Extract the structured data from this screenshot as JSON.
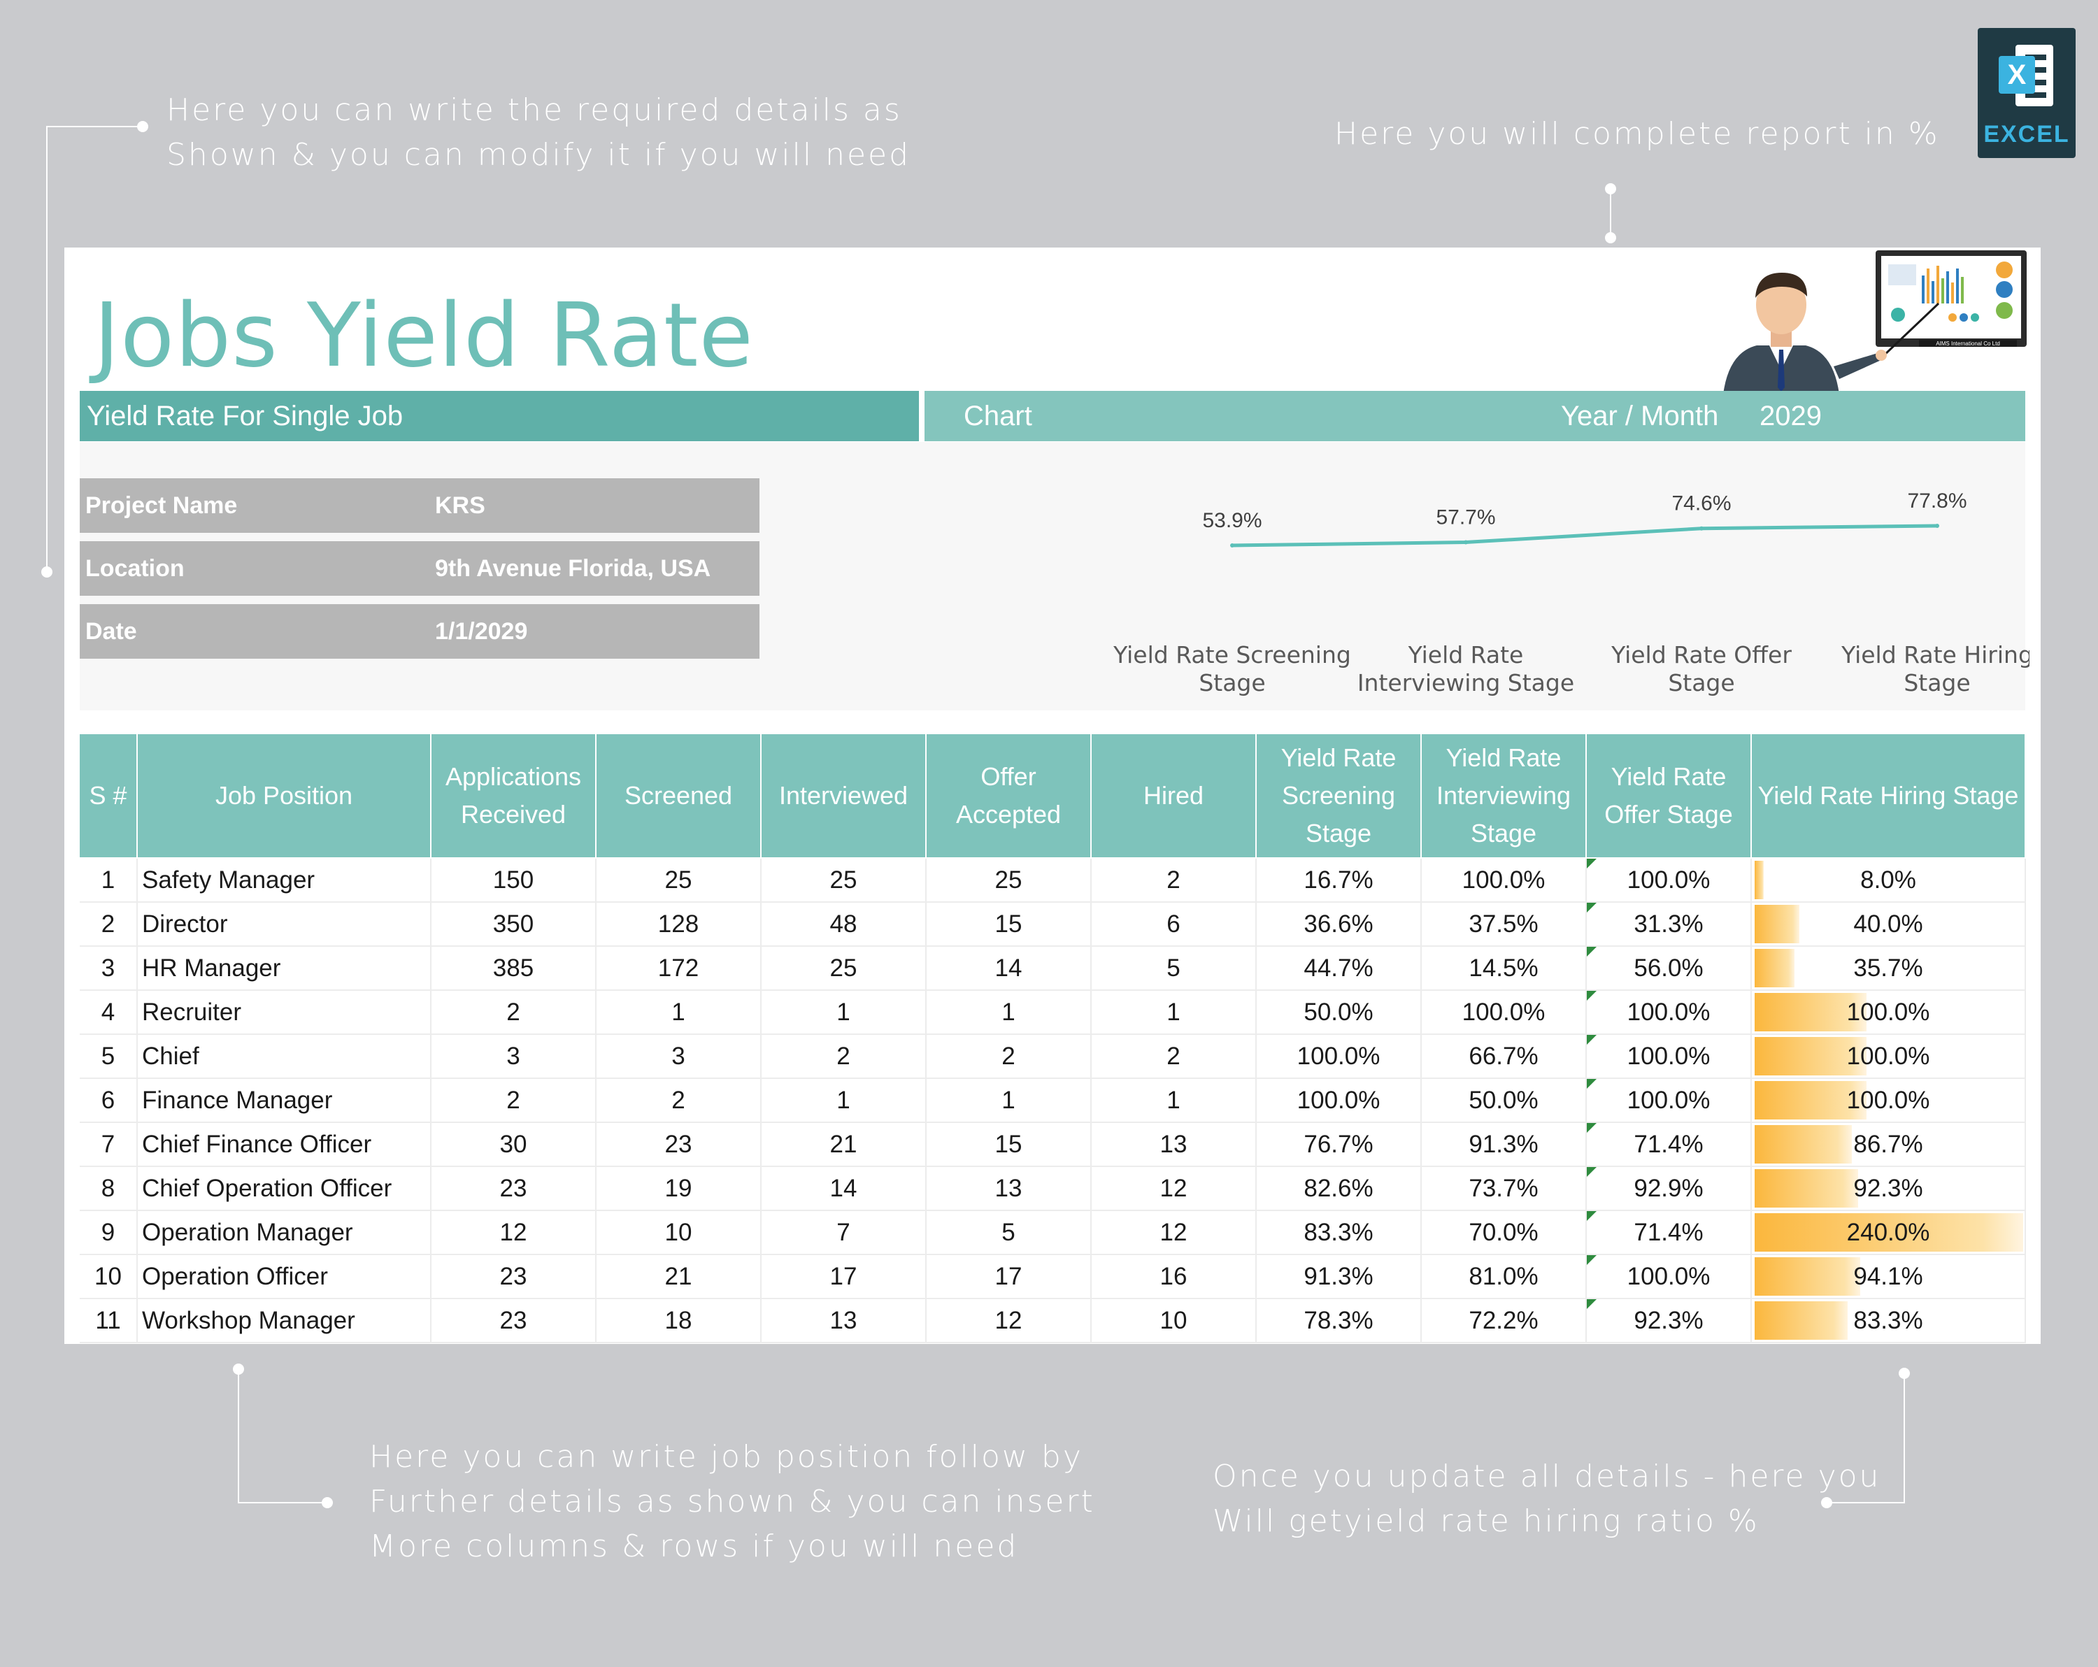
{
  "notes": {
    "top_left": [
      "Here you can write the required details as",
      "Shown & you can modify it if you will need"
    ],
    "top_right": "Here you will complete report in %",
    "bottom_left": [
      "Here you can write job position follow by",
      "Further details as shown & you can insert",
      "More columns & rows if you will need"
    ],
    "bottom_right": [
      "Once you update all details -  here you",
      "Will getyield rate hiring ratio %"
    ]
  },
  "badge": {
    "label": "EXCEL",
    "letter": "X"
  },
  "sheet": {
    "title": "Jobs Yield Rate",
    "band_left": "Yield Rate For Single Job",
    "band_chart": "Chart",
    "band_year_month": "Year / Month",
    "year": "2029",
    "presenter_caption": "AIMS International Co Ltd"
  },
  "info": {
    "project_label": "Project Name",
    "project_value": "KRS",
    "location_label": "Location",
    "location_value": "9th Avenue Florida, USA",
    "date_label": "Date",
    "date_value": "1/1/2029"
  },
  "chart_data": {
    "type": "line",
    "categories": [
      "Yield Rate Screening Stage",
      "Yield Rate Interviewing Stage",
      "Yield Rate Offer Stage",
      "Yield Rate Hiring Stage"
    ],
    "category_lines": [
      [
        "Yield Rate Screening",
        "Stage"
      ],
      [
        "Yield Rate",
        "Interviewing Stage"
      ],
      [
        "Yield Rate Offer",
        "Stage"
      ],
      [
        "Yield Rate Hiring",
        "Stage"
      ]
    ],
    "values": [
      53.9,
      57.7,
      74.6,
      77.8
    ],
    "labels": [
      "53.9%",
      "57.7%",
      "74.6%",
      "77.8%"
    ],
    "title": "",
    "ylim": [
      0,
      100
    ],
    "line_color": "#5bc0b8"
  },
  "table": {
    "headers": [
      "S #",
      "Job Position",
      "Applications Received",
      "Screened",
      "Interviewed",
      "Offer Accepted",
      "Hired",
      "Yield Rate Screening Stage",
      "Yield Rate Interviewing Stage",
      "Yield Rate Offer Stage",
      "Yield Rate Hiring Stage"
    ],
    "rows": [
      {
        "n": "1",
        "pos": "Safety Manager",
        "app": "150",
        "scr": "25",
        "int": "25",
        "off": "25",
        "hir": "2",
        "ys": "16.7%",
        "yi": "100.0%",
        "yo": "100.0%",
        "yh": "8.0%",
        "yh_val": 8.0
      },
      {
        "n": "2",
        "pos": "Director",
        "app": "350",
        "scr": "128",
        "int": "48",
        "off": "15",
        "hir": "6",
        "ys": "36.6%",
        "yi": "37.5%",
        "yo": "31.3%",
        "yh": "40.0%",
        "yh_val": 40.0
      },
      {
        "n": "3",
        "pos": "HR Manager",
        "app": "385",
        "scr": "172",
        "int": "25",
        "off": "14",
        "hir": "5",
        "ys": "44.7%",
        "yi": "14.5%",
        "yo": "56.0%",
        "yh": "35.7%",
        "yh_val": 35.7
      },
      {
        "n": "4",
        "pos": "Recruiter",
        "app": "2",
        "scr": "1",
        "int": "1",
        "off": "1",
        "hir": "1",
        "ys": "50.0%",
        "yi": "100.0%",
        "yo": "100.0%",
        "yh": "100.0%",
        "yh_val": 100.0
      },
      {
        "n": "5",
        "pos": "Chief",
        "app": "3",
        "scr": "3",
        "int": "2",
        "off": "2",
        "hir": "2",
        "ys": "100.0%",
        "yi": "66.7%",
        "yo": "100.0%",
        "yh": "100.0%",
        "yh_val": 100.0
      },
      {
        "n": "6",
        "pos": "Finance Manager",
        "app": "2",
        "scr": "2",
        "int": "1",
        "off": "1",
        "hir": "1",
        "ys": "100.0%",
        "yi": "50.0%",
        "yo": "100.0%",
        "yh": "100.0%",
        "yh_val": 100.0
      },
      {
        "n": "7",
        "pos": "Chief Finance Officer",
        "app": "30",
        "scr": "23",
        "int": "21",
        "off": "15",
        "hir": "13",
        "ys": "76.7%",
        "yi": "91.3%",
        "yo": "71.4%",
        "yh": "86.7%",
        "yh_val": 86.7
      },
      {
        "n": "8",
        "pos": "Chief Operation Officer",
        "app": "23",
        "scr": "19",
        "int": "14",
        "off": "13",
        "hir": "12",
        "ys": "82.6%",
        "yi": "73.7%",
        "yo": "92.9%",
        "yh": "92.3%",
        "yh_val": 92.3
      },
      {
        "n": "9",
        "pos": "Operation Manager",
        "app": "12",
        "scr": "10",
        "int": "7",
        "off": "5",
        "hir": "12",
        "ys": "83.3%",
        "yi": "70.0%",
        "yo": "71.4%",
        "yh": "240.0%",
        "yh_val": 240.0
      },
      {
        "n": "10",
        "pos": "Operation Officer",
        "app": "23",
        "scr": "21",
        "int": "17",
        "off": "17",
        "hir": "16",
        "ys": "91.3%",
        "yi": "81.0%",
        "yo": "100.0%",
        "yh": "94.1%",
        "yh_val": 94.1
      },
      {
        "n": "11",
        "pos": "Workshop Manager",
        "app": "23",
        "scr": "18",
        "int": "13",
        "off": "12",
        "hir": "10",
        "ys": "78.3%",
        "yi": "72.2%",
        "yo": "92.3%",
        "yh": "83.3%",
        "yh_val": 83.3
      }
    ]
  }
}
